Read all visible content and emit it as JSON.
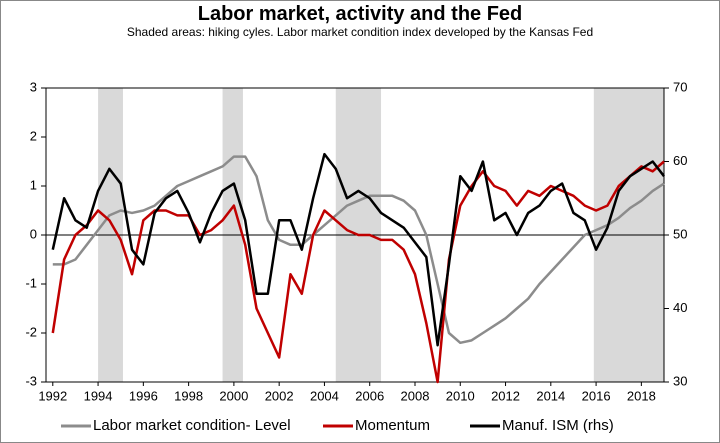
{
  "chart_data": {
    "type": "line",
    "title": "Labor market, activity and the Fed",
    "subtitle": "Shaded areas: hiking cyles. Labor market condition index developed by the Kansas Fed",
    "x": [
      1992,
      1992.5,
      1993,
      1993.5,
      1994,
      1994.5,
      1995,
      1995.5,
      1996,
      1996.5,
      1997,
      1997.5,
      1998,
      1998.5,
      1999,
      1999.5,
      2000,
      2000.5,
      2001,
      2001.5,
      2002,
      2002.5,
      2003,
      2003.5,
      2004,
      2004.5,
      2005,
      2005.5,
      2006,
      2006.5,
      2007,
      2007.5,
      2008,
      2008.5,
      2009,
      2009.5,
      2010,
      2010.5,
      2011,
      2011.5,
      2012,
      2012.5,
      2013,
      2013.5,
      2014,
      2014.5,
      2015,
      2015.5,
      2016,
      2016.5,
      2017,
      2017.5,
      2018,
      2018.5,
      2019
    ],
    "series": [
      {
        "name": "Labor market condition- Level",
        "color": "#8c8c8c",
        "values": [
          -0.6,
          -0.6,
          -0.5,
          -0.2,
          0.1,
          0.4,
          0.5,
          0.45,
          0.5,
          0.6,
          0.8,
          1.0,
          1.1,
          1.2,
          1.3,
          1.4,
          1.6,
          1.6,
          1.2,
          0.3,
          -0.1,
          -0.2,
          -0.2,
          0.0,
          0.2,
          0.4,
          0.6,
          0.7,
          0.8,
          0.8,
          0.8,
          0.7,
          0.5,
          0.0,
          -1.0,
          -2.0,
          -2.2,
          -2.15,
          -2.0,
          -1.85,
          -1.7,
          -1.5,
          -1.3,
          -1.0,
          -0.75,
          -0.5,
          -0.25,
          0.0,
          0.1,
          0.2,
          0.35,
          0.55,
          0.7,
          0.9,
          1.05
        ]
      },
      {
        "name": "Momentum",
        "color": "#c00000",
        "values": [
          -2.0,
          -0.5,
          0.0,
          0.2,
          0.5,
          0.3,
          -0.1,
          -0.8,
          0.3,
          0.5,
          0.5,
          0.4,
          0.4,
          0.0,
          0.1,
          0.3,
          0.6,
          -0.2,
          -1.5,
          -2.0,
          -2.5,
          -0.8,
          -1.2,
          0.0,
          0.5,
          0.3,
          0.1,
          0.0,
          0.0,
          -0.1,
          -0.1,
          -0.3,
          -0.8,
          -1.8,
          -3.0,
          -0.5,
          0.6,
          1.0,
          1.3,
          1.0,
          0.9,
          0.6,
          0.9,
          0.8,
          1.0,
          0.9,
          0.8,
          0.6,
          0.5,
          0.6,
          1.0,
          1.2,
          1.4,
          1.3,
          1.5
        ]
      },
      {
        "name": "Manuf. ISM (rhs)",
        "color": "#000000",
        "axis": "y2",
        "values": [
          48,
          55,
          52,
          51,
          56,
          59,
          57,
          48,
          46,
          53,
          55,
          56,
          53,
          49,
          53,
          56,
          57,
          52,
          42,
          42,
          52,
          52,
          48,
          55,
          61,
          59,
          55,
          56,
          55,
          53,
          52,
          51,
          49,
          47,
          35,
          46,
          58,
          56,
          60,
          52,
          53,
          50,
          53,
          54,
          56,
          57,
          53,
          52,
          48,
          51,
          56,
          58,
          59,
          60,
          58
        ]
      }
    ],
    "shaded": [
      [
        1994,
        1995.1
      ],
      [
        1999.5,
        2000.4
      ],
      [
        2004.5,
        2006.5
      ],
      [
        2015.9,
        2019
      ]
    ],
    "xlim": [
      1991.7,
      2019
    ],
    "xticks": [
      1992,
      1994,
      1996,
      1998,
      2000,
      2002,
      2004,
      2006,
      2008,
      2010,
      2012,
      2014,
      2016,
      2018
    ],
    "ylim": [
      -3,
      3
    ],
    "yticks": [
      -3,
      -2,
      -1,
      0,
      1,
      2,
      3
    ],
    "y2lim": [
      30,
      70
    ],
    "y2ticks": [
      30,
      40,
      50,
      60,
      70
    ],
    "legend": "bottom"
  }
}
